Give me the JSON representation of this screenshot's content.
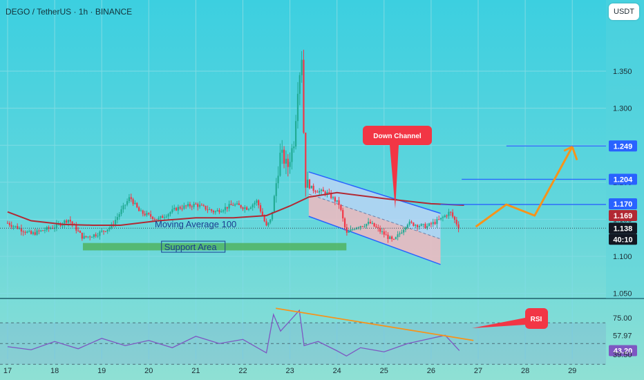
{
  "header": {
    "title": "DEGO / TetherUS · 1h · BINANCE"
  },
  "currency_button": {
    "label": "USDT"
  },
  "colors": {
    "background": "#5cd3de",
    "up_candle": "#22ab94",
    "down_candle": "#f23645",
    "moving_average": "#b22833",
    "channel": "#2962ff",
    "projection": "#f7931a",
    "rsi_line": "#7e57c2",
    "support": "#4caf50",
    "callout": "#f23645"
  },
  "chart_data": [
    {
      "type": "candlestick",
      "title": "DEGO / TetherUS · 1h · BINANCE",
      "x_ticks": [
        "17",
        "18",
        "19",
        "20",
        "21",
        "22",
        "23",
        "24",
        "25",
        "26",
        "27",
        "28",
        "29"
      ],
      "y_ticks": [
        "1.350",
        "1.300",
        "1.250",
        "1.200",
        "1.150",
        "1.100",
        "1.050"
      ],
      "ylim": [
        1.05,
        1.38
      ],
      "grid": true,
      "ohlc_path": [
        {
          "day": 17.0,
          "price": 1.145
        },
        {
          "day": 17.5,
          "price": 1.13
        },
        {
          "day": 18.0,
          "price": 1.14
        },
        {
          "day": 18.3,
          "price": 1.15
        },
        {
          "day": 18.6,
          "price": 1.125
        },
        {
          "day": 18.9,
          "price": 1.13
        },
        {
          "day": 19.2,
          "price": 1.14
        },
        {
          "day": 19.6,
          "price": 1.18
        },
        {
          "day": 19.8,
          "price": 1.16
        },
        {
          "day": 20.2,
          "price": 1.15
        },
        {
          "day": 20.6,
          "price": 1.165
        },
        {
          "day": 21.0,
          "price": 1.17
        },
        {
          "day": 21.4,
          "price": 1.16
        },
        {
          "day": 21.8,
          "price": 1.17
        },
        {
          "day": 22.1,
          "price": 1.165
        },
        {
          "day": 22.3,
          "price": 1.175
        },
        {
          "day": 22.5,
          "price": 1.14
        },
        {
          "day": 22.6,
          "price": 1.15
        },
        {
          "day": 22.8,
          "price": 1.24
        },
        {
          "day": 22.95,
          "price": 1.22
        },
        {
          "day": 23.1,
          "price": 1.26
        },
        {
          "day": 23.15,
          "price": 1.32
        },
        {
          "day": 23.25,
          "price": 1.37
        },
        {
          "day": 23.32,
          "price": 1.2
        },
        {
          "day": 23.5,
          "price": 1.19
        },
        {
          "day": 23.8,
          "price": 1.185
        },
        {
          "day": 24.05,
          "price": 1.17
        },
        {
          "day": 24.2,
          "price": 1.13
        },
        {
          "day": 24.4,
          "price": 1.14
        },
        {
          "day": 24.7,
          "price": 1.145
        },
        {
          "day": 25.0,
          "price": 1.13
        },
        {
          "day": 25.2,
          "price": 1.12
        },
        {
          "day": 25.5,
          "price": 1.145
        },
        {
          "day": 25.9,
          "price": 1.14
        },
        {
          "day": 26.2,
          "price": 1.15
        },
        {
          "day": 26.4,
          "price": 1.16
        },
        {
          "day": 26.6,
          "price": 1.138
        }
      ],
      "moving_average_100": [
        {
          "day": 17.0,
          "price": 1.16
        },
        {
          "day": 17.5,
          "price": 1.148
        },
        {
          "day": 18.2,
          "price": 1.143
        },
        {
          "day": 18.8,
          "price": 1.142
        },
        {
          "day": 19.4,
          "price": 1.142
        },
        {
          "day": 20.2,
          "price": 1.148
        },
        {
          "day": 21.0,
          "price": 1.152
        },
        {
          "day": 21.8,
          "price": 1.152
        },
        {
          "day": 22.5,
          "price": 1.155
        },
        {
          "day": 23.0,
          "price": 1.168
        },
        {
          "day": 23.4,
          "price": 1.18
        },
        {
          "day": 24.0,
          "price": 1.186
        },
        {
          "day": 25.0,
          "price": 1.178
        },
        {
          "day": 26.0,
          "price": 1.171
        },
        {
          "day": 26.7,
          "price": 1.169
        }
      ],
      "current_price": 1.138,
      "price_labels": [
        {
          "text": "1.249",
          "style": "blue"
        },
        {
          "text": "1.204",
          "style": "blue"
        },
        {
          "text": "1.170",
          "style": "blue"
        },
        {
          "text": "1.169",
          "style": "red"
        },
        {
          "text": "1.138",
          "style": "black"
        },
        {
          "text": "40:10",
          "style": "black"
        }
      ],
      "annotations": {
        "moving_average_label": "Moving Average 100",
        "support_label": "Support Area",
        "channel_label": "Down Channel"
      },
      "support_area": {
        "day_from": 18.6,
        "day_to": 24.2,
        "price_from": 1.108,
        "price_to": 1.118
      },
      "down_channel": {
        "upper": [
          {
            "day": 23.4,
            "price": 1.214
          },
          {
            "day": 26.2,
            "price": 1.158
          }
        ],
        "lower": [
          {
            "day": 23.4,
            "price": 1.154
          },
          {
            "day": 26.2,
            "price": 1.089
          }
        ]
      },
      "resistance_levels": [
        1.249,
        1.204,
        1.17
      ],
      "projection_path": [
        {
          "day": 26.95,
          "price": 1.14
        },
        {
          "day": 27.6,
          "price": 1.17
        },
        {
          "day": 28.2,
          "price": 1.155
        },
        {
          "day": 29.0,
          "price": 1.248
        },
        {
          "day": 29.1,
          "price": 1.23
        }
      ]
    },
    {
      "type": "line",
      "name": "RSI",
      "y_ticks": [
        "75.00",
        "57.97",
        "43.20",
        "39.50"
      ],
      "current_value": 43.2,
      "series": [
        {
          "day": 17.0,
          "value": 47
        },
        {
          "day": 17.5,
          "value": 44
        },
        {
          "day": 18.0,
          "value": 52
        },
        {
          "day": 18.5,
          "value": 45
        },
        {
          "day": 19.0,
          "value": 55
        },
        {
          "day": 19.5,
          "value": 48
        },
        {
          "day": 20.0,
          "value": 53
        },
        {
          "day": 20.5,
          "value": 46
        },
        {
          "day": 21.0,
          "value": 57
        },
        {
          "day": 21.5,
          "value": 50
        },
        {
          "day": 22.0,
          "value": 54
        },
        {
          "day": 22.5,
          "value": 41
        },
        {
          "day": 22.65,
          "value": 78
        },
        {
          "day": 22.8,
          "value": 62
        },
        {
          "day": 23.0,
          "value": 72
        },
        {
          "day": 23.2,
          "value": 82
        },
        {
          "day": 23.3,
          "value": 48
        },
        {
          "day": 23.6,
          "value": 52
        },
        {
          "day": 24.0,
          "value": 43
        },
        {
          "day": 24.2,
          "value": 38
        },
        {
          "day": 24.5,
          "value": 46
        },
        {
          "day": 25.0,
          "value": 42
        },
        {
          "day": 25.5,
          "value": 50
        },
        {
          "day": 26.0,
          "value": 55
        },
        {
          "day": 26.3,
          "value": 58
        },
        {
          "day": 26.6,
          "value": 43.2
        }
      ],
      "trendline": [
        {
          "day": 22.7,
          "value": 84
        },
        {
          "day": 26.9,
          "value": 53
        }
      ],
      "callout_label": "RSI"
    }
  ]
}
